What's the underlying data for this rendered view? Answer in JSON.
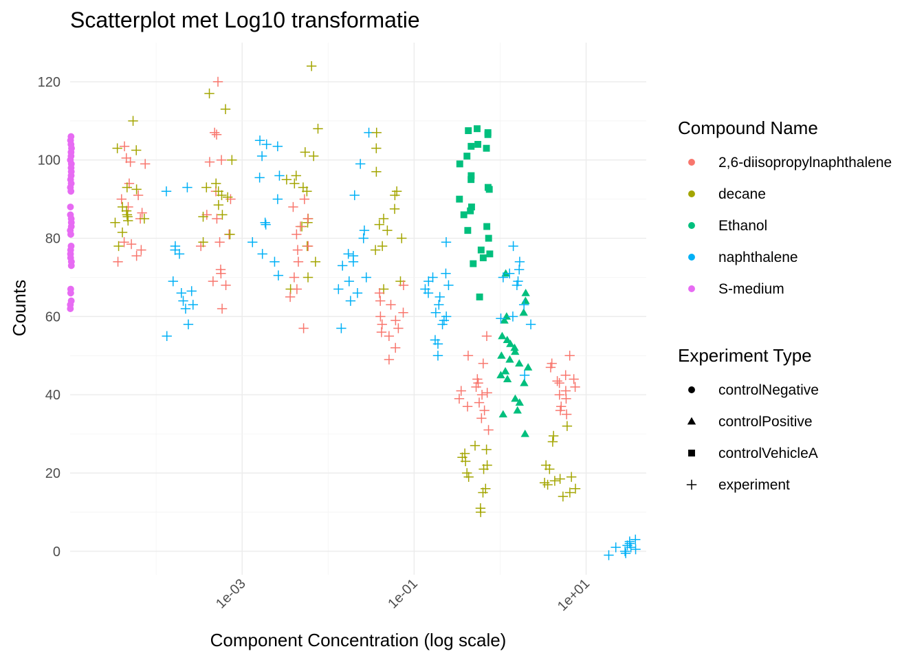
{
  "chart_data": {
    "type": "scatter",
    "title": "Scatterplot met Log10 transformatie",
    "xlabel": "Component Concentration (log scale)",
    "ylabel": "Counts",
    "x_scale": "log10",
    "xlim": [
      1e-05,
      50
    ],
    "ylim": [
      -6,
      130
    ],
    "x_ticks": [
      {
        "value": 0.001,
        "label": "1e-03"
      },
      {
        "value": 0.1,
        "label": "1e-01"
      },
      {
        "value": 10,
        "label": "1e+01"
      }
    ],
    "y_ticks": [
      0,
      20,
      40,
      60,
      80,
      100,
      120
    ],
    "grid": true,
    "legend_position": "right",
    "legends": {
      "color": {
        "title": "Compound Name",
        "entries": [
          {
            "key": "diiso",
            "label": "2,6-diisopropylnaphthalene",
            "color": "#F8766D"
          },
          {
            "key": "decane",
            "label": "decane",
            "color": "#A3A500"
          },
          {
            "key": "ethanol",
            "label": "Ethanol",
            "color": "#00BF7D"
          },
          {
            "key": "naph",
            "label": "naphthalene",
            "color": "#00B0F6"
          },
          {
            "key": "smedium",
            "label": "S-medium",
            "color": "#E76BF3"
          }
        ]
      },
      "shape": {
        "title": "Experiment Type",
        "entries": [
          {
            "key": "neg",
            "label": "controlNegative",
            "shape": "circle"
          },
          {
            "key": "pos",
            "label": "controlPositive",
            "shape": "triangle"
          },
          {
            "key": "veh",
            "label": "controlVehicleA",
            "shape": "square"
          },
          {
            "key": "exp",
            "label": "experiment",
            "shape": "cross"
          }
        ]
      }
    },
    "series": [
      {
        "compound": "S-medium",
        "experiment": "controlNegative",
        "x": 1e-05,
        "y": [
          106,
          105,
          104,
          103,
          102,
          101,
          100,
          99,
          98,
          97,
          96,
          95,
          94,
          93,
          92,
          88,
          86,
          85,
          84,
          83,
          82,
          81,
          78,
          77,
          76,
          75,
          74,
          73,
          67,
          66,
          64,
          63,
          62
        ]
      },
      {
        "compound": "2,6-diisopropylnaphthalene",
        "experiment": "experiment",
        "x": 5e-05,
        "y": [
          103.5,
          100.5,
          99.5,
          99,
          94,
          91,
          90,
          88,
          86.5,
          85,
          79,
          78.5,
          77,
          75.5,
          74
        ]
      },
      {
        "compound": "decane",
        "experiment": "experiment",
        "x": 5e-05,
        "y": [
          110,
          103,
          102.5,
          93,
          92.5,
          88,
          87,
          86,
          85.5,
          85,
          84.5,
          84,
          81.5,
          78
        ]
      },
      {
        "compound": "naphthalene",
        "experiment": "experiment",
        "x": 0.0002,
        "y": [
          93,
          92,
          78,
          77,
          76,
          69,
          66.5,
          66,
          64,
          63,
          62,
          58,
          55
        ]
      },
      {
        "compound": "2,6-diisopropylnaphthalene",
        "experiment": "experiment",
        "x": 0.0005,
        "y": [
          120,
          107,
          106.5,
          100,
          99.5,
          92,
          90,
          86,
          85,
          81,
          79,
          78,
          72,
          71,
          69,
          68,
          62
        ]
      },
      {
        "compound": "decane",
        "experiment": "experiment",
        "x": 0.0005,
        "y": [
          117,
          113,
          100,
          94,
          93,
          92,
          91,
          90.5,
          88.5,
          86,
          85.5,
          81,
          79
        ]
      },
      {
        "compound": "naphthalene",
        "experiment": "experiment",
        "x": 0.002,
        "y": [
          105,
          104,
          103.5,
          101,
          96,
          95.5,
          90,
          84,
          83.5,
          79,
          76,
          74,
          70.5
        ]
      },
      {
        "compound": "decane",
        "experiment": "experiment",
        "x": 0.005,
        "y": [
          124,
          108,
          102,
          101,
          96,
          95,
          94,
          93,
          92,
          85,
          84,
          83,
          78,
          74,
          70,
          67
        ]
      },
      {
        "compound": "2,6-diisopropylnaphthalene",
        "experiment": "experiment",
        "x": 0.005,
        "y": [
          90,
          88,
          85,
          83,
          81,
          78,
          77,
          74,
          70,
          67,
          65,
          57
        ]
      },
      {
        "compound": "naphthalene",
        "experiment": "experiment",
        "x": 0.02,
        "y": [
          107,
          99,
          91,
          82,
          80,
          76,
          75.5,
          74,
          73,
          70,
          69,
          67,
          66,
          64,
          57
        ]
      },
      {
        "compound": "decane",
        "experiment": "experiment",
        "x": 0.05,
        "y": [
          107,
          103,
          97,
          92,
          91,
          87.5,
          85,
          83.5,
          82,
          80,
          78,
          77,
          69,
          67
        ]
      },
      {
        "compound": "2,6-diisopropylnaphthalene",
        "experiment": "experiment",
        "x": 0.05,
        "y": [
          68,
          66,
          64,
          63,
          61,
          60,
          59,
          58,
          57,
          56,
          55,
          52,
          49
        ]
      },
      {
        "compound": "naphthalene",
        "experiment": "experiment",
        "x": 0.2,
        "y": [
          79,
          71,
          70,
          69,
          68,
          67,
          66,
          65,
          63,
          61,
          60,
          59,
          58,
          54,
          53,
          50
        ]
      },
      {
        "compound": "Ethanol",
        "experiment": "controlVehicleA",
        "x": 0.5,
        "y": [
          108,
          107.5,
          107,
          106.5,
          104,
          103.5,
          103,
          101,
          99,
          96,
          95,
          93,
          92.5,
          90,
          88,
          87,
          86,
          83,
          82,
          80,
          77,
          76,
          75,
          73.5,
          65
        ]
      },
      {
        "compound": "2,6-diisopropylnaphthalene",
        "experiment": "experiment",
        "x": 0.5,
        "y": [
          55,
          50,
          48,
          44,
          43,
          42,
          41,
          40.5,
          40,
          39,
          38,
          37,
          36,
          34,
          31
        ]
      },
      {
        "compound": "decane",
        "experiment": "experiment",
        "x": 0.5,
        "y": [
          27,
          26,
          25,
          24,
          23,
          22,
          21,
          20,
          19,
          16,
          15,
          11,
          10
        ]
      },
      {
        "compound": "Ethanol",
        "experiment": "controlPositive",
        "x": 1.5,
        "y": [
          71,
          66,
          64,
          61,
          60,
          59,
          55,
          54,
          53,
          52,
          51,
          50,
          49,
          48,
          47,
          46,
          45,
          44,
          43,
          39,
          38,
          36,
          35,
          30
        ]
      },
      {
        "compound": "naphthalene",
        "experiment": "experiment",
        "x": 1.5,
        "y": [
          78,
          74,
          72,
          71,
          70,
          69,
          68,
          63,
          60,
          59.5,
          58,
          45
        ]
      },
      {
        "compound": "2,6-diisopropylnaphthalene",
        "experiment": "experiment",
        "x": 5,
        "y": [
          50,
          48,
          47,
          45,
          44,
          43.5,
          43,
          42,
          41,
          40,
          39,
          37,
          36,
          35
        ]
      },
      {
        "compound": "decane",
        "experiment": "experiment",
        "x": 5,
        "y": [
          32,
          29.5,
          28,
          22,
          21,
          19,
          18.5,
          18,
          17.5,
          17,
          16,
          15,
          14
        ]
      },
      {
        "compound": "naphthalene",
        "experiment": "experiment",
        "x": 25,
        "y": [
          3,
          2,
          1.5,
          1,
          0.5,
          0,
          -0.5,
          -1,
          2.5,
          1
        ]
      }
    ]
  }
}
